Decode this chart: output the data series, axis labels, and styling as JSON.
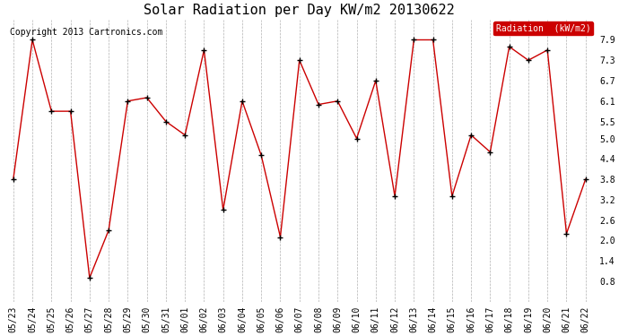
{
  "title": "Solar Radiation per Day KW/m2 20130622",
  "copyright_text": "Copyright 2013 Cartronics.com",
  "legend_label": "Radiation  (kW/m2)",
  "dates": [
    "05/23",
    "05/24",
    "05/25",
    "05/26",
    "05/27",
    "05/28",
    "05/29",
    "05/30",
    "05/31",
    "06/01",
    "06/02",
    "06/03",
    "06/04",
    "06/05",
    "06/06",
    "06/07",
    "06/08",
    "06/09",
    "06/10",
    "06/11",
    "06/12",
    "06/13",
    "06/14",
    "06/15",
    "06/16",
    "06/17",
    "06/18",
    "06/19",
    "06/20",
    "06/21",
    "06/22"
  ],
  "values": [
    3.8,
    7.9,
    5.8,
    5.8,
    0.9,
    2.3,
    6.1,
    6.2,
    5.5,
    5.1,
    7.6,
    2.9,
    6.1,
    4.5,
    2.1,
    7.3,
    6.0,
    6.1,
    5.0,
    6.7,
    3.3,
    7.9,
    7.9,
    3.3,
    5.1,
    4.6,
    7.7,
    7.3,
    7.6,
    2.2,
    3.8
  ],
  "line_color": "#cc0000",
  "marker_color": "#000000",
  "background_color": "#ffffff",
  "grid_color": "#aaaaaa",
  "ylim": [
    0.2,
    8.5
  ],
  "yticks": [
    0.8,
    1.4,
    2.0,
    2.6,
    3.2,
    3.8,
    4.4,
    5.0,
    5.5,
    6.1,
    6.7,
    7.3,
    7.9
  ],
  "legend_bg": "#cc0000",
  "legend_text_color": "#ffffff",
  "title_fontsize": 11,
  "tick_fontsize": 7,
  "copyright_fontsize": 7
}
